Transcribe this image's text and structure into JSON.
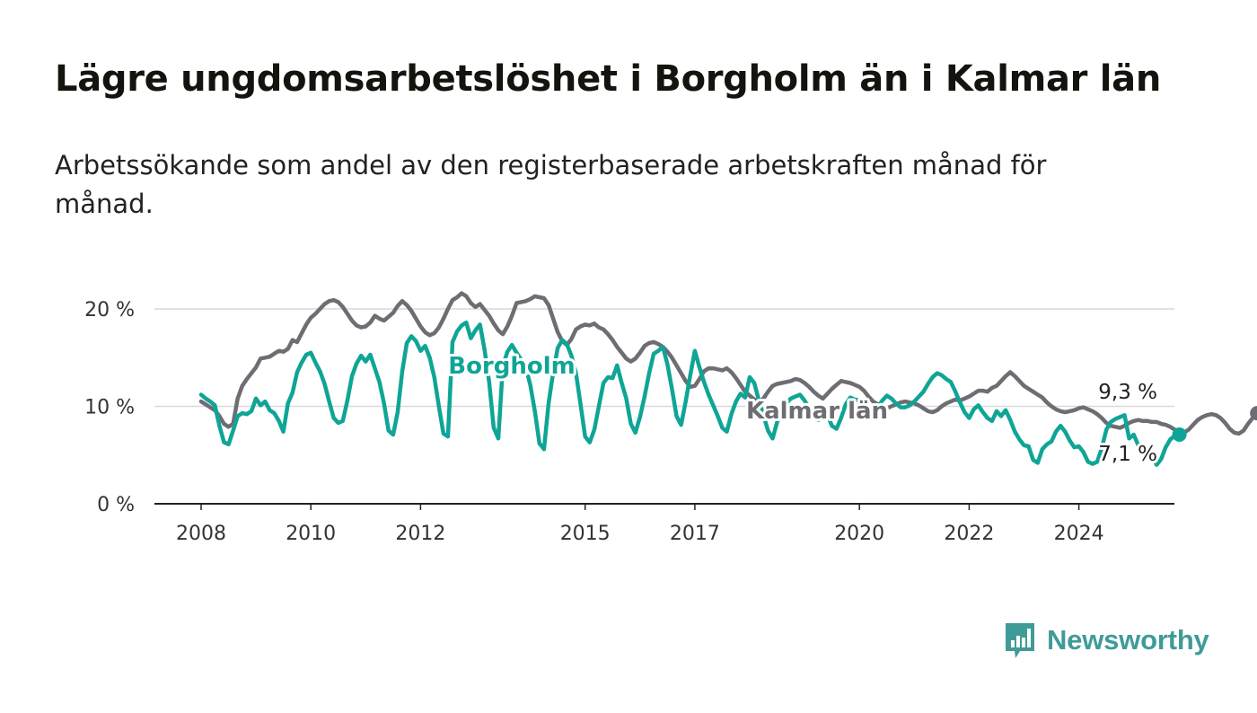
{
  "title": "Lägre ungdomsarbetslöshet i Borgholm än i Kalmar län",
  "subtitle": "Arbetssökande som andel av den registerbaserade arbetskraften månad för månad.",
  "brand": {
    "name": "Newsworthy",
    "icon": "bar-chart-speech-bubble-icon",
    "color": "#3f9b98"
  },
  "chart_data": {
    "type": "line",
    "ylim": [
      0,
      22
    ],
    "y_ticks": [
      0,
      10,
      20
    ],
    "y_tick_labels": [
      "0 %",
      "10 %",
      "20 %"
    ],
    "x_ticks": [
      2008,
      2010,
      2012,
      2015,
      2017,
      2020,
      2022,
      2024
    ],
    "x_tick_labels": [
      "2008",
      "2010",
      "2012",
      "2015",
      "2017",
      "2020",
      "2022",
      "2024"
    ],
    "grid": "horizontal",
    "legend": "inline labels",
    "start": "2008-01",
    "interval": "month",
    "series": [
      {
        "name": "Kalmar län",
        "color": "#6e6d73",
        "end_label": "9,3 %",
        "values": [
          10.5,
          10.2,
          9.9,
          9.6,
          9.0,
          8.2,
          7.9,
          8.2,
          10.8,
          12.1,
          12.8,
          13.4,
          14.0,
          14.9,
          15.0,
          15.1,
          15.4,
          15.7,
          15.6,
          15.9,
          16.8,
          16.6,
          17.5,
          18.4,
          19.1,
          19.5,
          20.0,
          20.5,
          20.8,
          20.9,
          20.7,
          20.2,
          19.5,
          18.8,
          18.3,
          18.1,
          18.2,
          18.6,
          19.3,
          19.0,
          18.8,
          19.2,
          19.6,
          20.3,
          20.8,
          20.4,
          19.8,
          19.0,
          18.2,
          17.6,
          17.3,
          17.5,
          18.1,
          19.0,
          20.0,
          20.9,
          21.2,
          21.6,
          21.3,
          20.6,
          20.2,
          20.5,
          19.9,
          19.3,
          18.5,
          17.8,
          17.4,
          18.2,
          19.3,
          20.6,
          20.7,
          20.8,
          21.0,
          21.3,
          21.2,
          21.1,
          20.4,
          19.0,
          17.6,
          16.7,
          16.3,
          16.9,
          17.9,
          18.2,
          18.4,
          18.3,
          18.5,
          18.1,
          17.9,
          17.4,
          16.8,
          16.1,
          15.5,
          14.9,
          14.6,
          14.9,
          15.5,
          16.2,
          16.5,
          16.6,
          16.4,
          16.1,
          15.6,
          15.0,
          14.2,
          13.4,
          12.6,
          12.0,
          12.1,
          12.8,
          13.6,
          13.9,
          13.9,
          13.8,
          13.7,
          13.9,
          13.5,
          12.9,
          12.2,
          11.5,
          11.1,
          10.7,
          10.4,
          10.8,
          11.5,
          12.1,
          12.3,
          12.4,
          12.5,
          12.6,
          12.8,
          12.7,
          12.4,
          12.0,
          11.5,
          11.1,
          10.8,
          11.3,
          11.8,
          12.2,
          12.6,
          12.5,
          12.4,
          12.2,
          12.0,
          11.6,
          11.0,
          10.5,
          10.2,
          9.9,
          9.8,
          10.0,
          10.2,
          10.4,
          10.5,
          10.4,
          10.3,
          10.1,
          9.8,
          9.5,
          9.4,
          9.6,
          10.0,
          10.3,
          10.5,
          10.7,
          10.6,
          10.8,
          11.0,
          11.3,
          11.6,
          11.6,
          11.5,
          11.9,
          12.1,
          12.6,
          13.1,
          13.5,
          13.1,
          12.6,
          12.1,
          11.8,
          11.5,
          11.2,
          10.9,
          10.4,
          10.0,
          9.7,
          9.5,
          9.4,
          9.5,
          9.6,
          9.8,
          9.9,
          9.7,
          9.5,
          9.2,
          8.8,
          8.3,
          8.0,
          7.9,
          7.8,
          8.0,
          8.3,
          8.5,
          8.6,
          8.5,
          8.5,
          8.4,
          8.4,
          8.2,
          8.1,
          7.9,
          7.6,
          7.4,
          7.3,
          7.6,
          8.1,
          8.6,
          8.9,
          9.1,
          9.2,
          9.1,
          8.8,
          8.3,
          7.7,
          7.3,
          7.2,
          7.5,
          8.2,
          8.8,
          9.3
        ]
      },
      {
        "name": "Borgholm",
        "color": "#0fa596",
        "end_label": "7,1 %",
        "values": [
          11.2,
          10.8,
          10.5,
          10.1,
          8.0,
          6.3,
          6.1,
          7.5,
          9.0,
          9.3,
          9.2,
          9.5,
          10.8,
          10.1,
          10.5,
          9.6,
          9.3,
          8.5,
          7.4,
          10.3,
          11.4,
          13.5,
          14.5,
          15.3,
          15.5,
          14.5,
          13.6,
          12.3,
          10.5,
          8.8,
          8.3,
          8.5,
          10.6,
          13.1,
          14.4,
          15.2,
          14.6,
          15.3,
          13.9,
          12.5,
          10.3,
          7.5,
          7.1,
          9.4,
          13.6,
          16.5,
          17.2,
          16.7,
          15.7,
          16.2,
          15.0,
          13.0,
          10.0,
          7.2,
          6.9,
          16.6,
          17.7,
          18.3,
          18.6,
          17.0,
          17.8,
          18.4,
          15.8,
          12.5,
          7.8,
          6.7,
          14.1,
          15.6,
          16.3,
          15.5,
          14.8,
          14.0,
          12.2,
          9.5,
          6.2,
          5.6,
          10.3,
          13.5,
          16.0,
          16.8,
          16.4,
          15.2,
          13.4,
          10.2,
          6.9,
          6.3,
          7.6,
          10.0,
          12.4,
          13.0,
          12.9,
          14.2,
          12.4,
          10.8,
          8.2,
          7.3,
          8.9,
          11.0,
          13.4,
          15.4,
          15.7,
          16.1,
          14.3,
          11.8,
          9.0,
          8.1,
          10.5,
          13.2,
          15.7,
          14.0,
          12.5,
          11.2,
          10.1,
          9.0,
          7.8,
          7.4,
          9.2,
          10.5,
          11.3,
          10.9,
          13.0,
          12.4,
          10.6,
          9.1,
          7.5,
          6.7,
          8.4,
          9.5,
          10.3,
          10.8,
          11.0,
          11.2,
          10.6,
          9.8,
          9.3,
          8.6,
          9.5,
          9.1,
          8.0,
          7.7,
          8.8,
          10.2,
          10.9,
          10.7,
          10.6,
          9.6,
          9.9,
          9.7,
          9.9,
          10.6,
          11.1,
          10.8,
          10.3,
          9.9,
          9.9,
          10.1,
          10.5,
          11.0,
          11.5,
          12.3,
          13.0,
          13.4,
          13.2,
          12.8,
          12.5,
          11.5,
          10.4,
          9.4,
          8.8,
          9.7,
          10.1,
          9.4,
          8.8,
          8.5,
          9.5,
          9.0,
          9.6,
          8.6,
          7.4,
          6.6,
          6.0,
          5.9,
          4.5,
          4.2,
          5.6,
          6.1,
          6.4,
          7.4,
          8.0,
          7.4,
          6.5,
          5.8,
          5.9,
          5.3,
          4.3,
          4.1,
          4.3,
          5.7,
          7.6,
          8.4,
          8.7,
          8.9,
          9.1,
          6.7,
          7.1,
          6.0,
          5.3,
          5.0,
          4.9,
          4.0,
          4.6,
          5.8,
          6.6,
          7.0,
          7.1
        ]
      }
    ]
  }
}
